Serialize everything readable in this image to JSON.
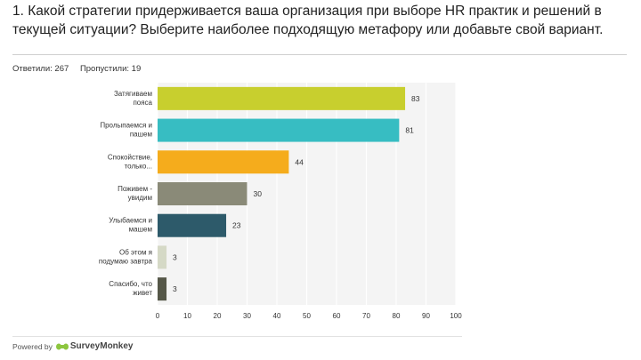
{
  "question": {
    "title": "1. Какой стратегии придерживается ваша организация при выборе HR практик и решений в текущей ситуации? Выберите наиболее подходящую метафору или добавьте свой вариант."
  },
  "stats": {
    "answered": "Ответили: 267",
    "skipped": "Пропустили: 19"
  },
  "footer": {
    "powered_by": "Powered by",
    "brand": "SurveyMonkey"
  },
  "chart_data": {
    "type": "bar",
    "orientation": "horizontal",
    "categories": [
      [
        "Затягиваем",
        "пояса"
      ],
      [
        "Пролыпаемся и",
        "пашем"
      ],
      [
        "Спокойствие,",
        "только..."
      ],
      [
        "Поживем -",
        "увидим"
      ],
      [
        "Улыбаемся и",
        "машем"
      ],
      [
        "Об этом я",
        "подумаю завтра"
      ],
      [
        "Спасибо, что",
        "живет"
      ]
    ],
    "values": [
      83,
      81,
      44,
      30,
      23,
      3,
      3
    ],
    "colors": [
      "#c8cf2e",
      "#37bdc2",
      "#f5ac1c",
      "#8a8a78",
      "#2d5a6a",
      "#d5d9c6",
      "#555748"
    ],
    "xlim": [
      0,
      100
    ],
    "xticks": [
      0,
      10,
      20,
      30,
      40,
      50,
      60,
      70,
      80,
      90,
      100
    ],
    "grid": true,
    "plot_background": "#f4f4f4"
  }
}
